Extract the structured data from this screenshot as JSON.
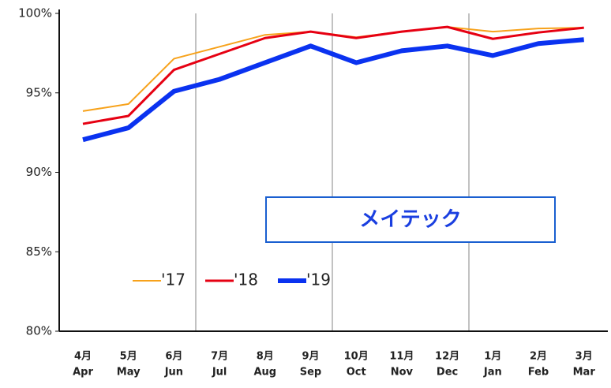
{
  "chart_data": {
    "type": "line",
    "categories": [
      "4月",
      "5月",
      "6月",
      "7月",
      "8月",
      "9月",
      "10月",
      "11月",
      "12月",
      "1月",
      "2月",
      "3月"
    ],
    "categories_en": [
      "Apr",
      "May",
      "Jun",
      "Jul",
      "Aug",
      "Sep",
      "Oct",
      "Nov",
      "Dec",
      "Jan",
      "Feb",
      "Mar"
    ],
    "series": [
      {
        "name": "'17",
        "color": "#f7a21b",
        "width": 2,
        "values": [
          93.85,
          94.3,
          97.15,
          97.9,
          98.65,
          98.85,
          98.5,
          98.85,
          99.15,
          98.85,
          99.05,
          99.1
        ]
      },
      {
        "name": "'18",
        "color": "#e60012",
        "width": 3,
        "values": [
          93.05,
          93.55,
          96.45,
          97.45,
          98.45,
          98.85,
          98.45,
          98.85,
          99.15,
          98.4,
          98.8,
          99.1
        ]
      },
      {
        "name": "'19",
        "color": "#0a32f0",
        "width": 6,
        "values": [
          92.05,
          92.8,
          95.1,
          95.85,
          96.9,
          97.95,
          96.9,
          97.65,
          97.95,
          97.35,
          98.1,
          98.35
        ]
      }
    ],
    "ylim": [
      80,
      100
    ],
    "yticks": [
      {
        "value": 80,
        "label": "80%"
      },
      {
        "value": 85,
        "label": "85%"
      },
      {
        "value": 90,
        "label": "90%"
      },
      {
        "value": 95,
        "label": "95%"
      },
      {
        "value": 100,
        "label": "100%"
      }
    ],
    "annotation": "メイテック"
  }
}
